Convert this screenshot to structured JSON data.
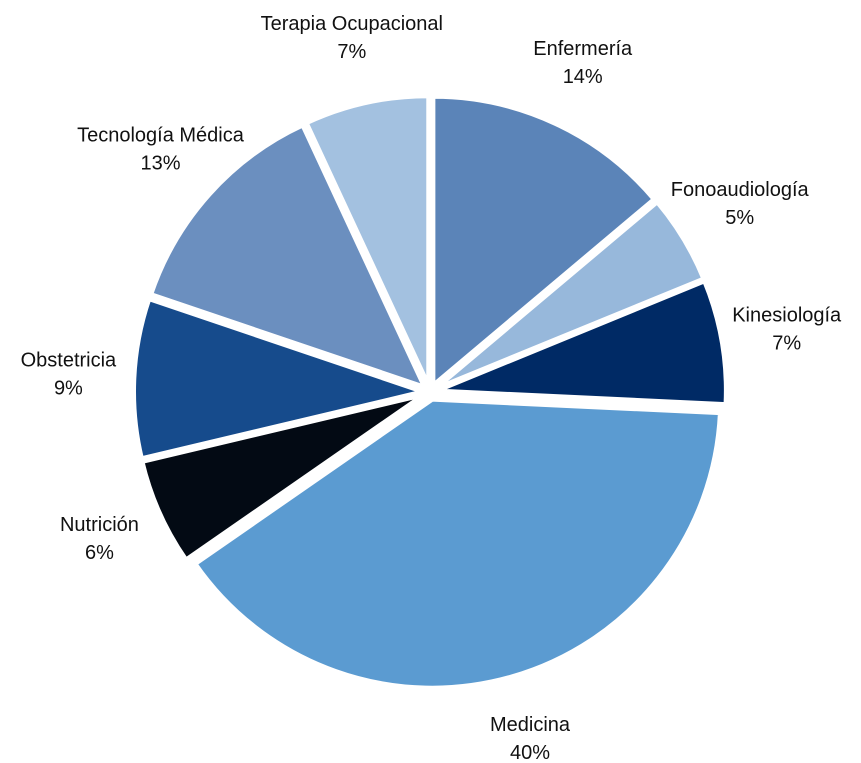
{
  "chart_data": {
    "type": "pie",
    "categories": [
      "Enfermería",
      "Fonoaudiología",
      "Kinesiología",
      "Medicina",
      "Nutrición",
      "Obstetricia",
      "Tecnología Médica",
      "Terapia Ocupacional"
    ],
    "values": [
      14,
      5,
      7,
      40,
      6,
      9,
      13,
      7
    ],
    "value_labels": [
      "14%",
      "5%",
      "7%",
      "40%",
      "6%",
      "9%",
      "13%",
      "7%"
    ],
    "colors": [
      "#5b84b8",
      "#97b8db",
      "#002a65",
      "#5b9bd1",
      "#030a14",
      "#164b8c",
      "#6b8fbf",
      "#a3c1e0"
    ]
  }
}
